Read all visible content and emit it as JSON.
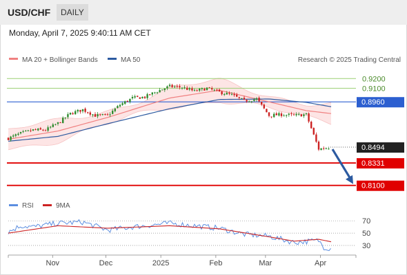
{
  "header": {
    "symbol": "USD/CHF",
    "period": "DAILY",
    "datetime": "Monday, April 7, 2025 9:40:11 AM CET"
  },
  "legend": {
    "ma20": "MA 20 + Bollinger Bands",
    "ma50": "MA 50",
    "credit": "Research © 2025 Trading Central"
  },
  "rsi_legend": {
    "rsi": "RSI",
    "ma": "9MA"
  },
  "colors": {
    "ma20": "#f08080",
    "ma50": "#2c5aa0",
    "bands": "#fde0e0",
    "up": "#2e8b2e",
    "down": "#cc2222",
    "resistance": "#9bcf73",
    "support": "#e00000",
    "blue_level": "#2c5fd0",
    "arrow": "#2c5aa0",
    "rsi": "#5b8ee0",
    "rsi_ma": "#cc2222"
  },
  "chart_data": [
    {
      "type": "line",
      "title": "USD/CHF",
      "ylim": [
        0.802,
        0.928
      ],
      "x_ticks": [
        "Nov",
        "Dec",
        "2025",
        "Feb",
        "Mar",
        "Apr"
      ],
      "price_levels": [
        {
          "label": "0.9200",
          "value": 0.92,
          "kind": "resistance"
        },
        {
          "label": "0.9100",
          "value": 0.91,
          "kind": "resistance"
        },
        {
          "label": "0.8960",
          "value": 0.896,
          "kind": "pivot"
        },
        {
          "label": "0.8494",
          "value": 0.8494,
          "kind": "current"
        },
        {
          "label": "0.8331",
          "value": 0.8331,
          "kind": "support"
        },
        {
          "label": "0.8100",
          "value": 0.81,
          "kind": "support"
        }
      ],
      "price_path": [
        {
          "date": "2024-10-07",
          "close": 0.8585
        },
        {
          "date": "2024-10-14",
          "close": 0.8635
        },
        {
          "date": "2024-10-21",
          "close": 0.867
        },
        {
          "date": "2024-10-28",
          "close": 0.867
        },
        {
          "date": "2024-11-04",
          "close": 0.874
        },
        {
          "date": "2024-11-11",
          "close": 0.884
        },
        {
          "date": "2024-11-18",
          "close": 0.888
        },
        {
          "date": "2024-11-25",
          "close": 0.882
        },
        {
          "date": "2024-12-02",
          "close": 0.882
        },
        {
          "date": "2024-12-09",
          "close": 0.893
        },
        {
          "date": "2024-12-16",
          "close": 0.9
        },
        {
          "date": "2024-12-23",
          "close": 0.901
        },
        {
          "date": "2024-12-30",
          "close": 0.907
        },
        {
          "date": "2025-01-06",
          "close": 0.912
        },
        {
          "date": "2025-01-13",
          "close": 0.911
        },
        {
          "date": "2025-01-20",
          "close": 0.907
        },
        {
          "date": "2025-01-27",
          "close": 0.91
        },
        {
          "date": "2025-02-03",
          "close": 0.906
        },
        {
          "date": "2025-02-10",
          "close": 0.903
        },
        {
          "date": "2025-02-17",
          "close": 0.897
        },
        {
          "date": "2025-02-24",
          "close": 0.899
        },
        {
          "date": "2025-03-03",
          "close": 0.882
        },
        {
          "date": "2025-03-10",
          "close": 0.883
        },
        {
          "date": "2025-03-17",
          "close": 0.882
        },
        {
          "date": "2025-03-24",
          "close": 0.883
        },
        {
          "date": "2025-03-31",
          "close": 0.8475
        },
        {
          "date": "2025-04-07",
          "close": 0.8494
        }
      ],
      "ma20": [
        {
          "date": "2024-10-07",
          "value": 0.8575
        },
        {
          "date": "2024-11-04",
          "value": 0.866
        },
        {
          "date": "2024-12-02",
          "value": 0.88
        },
        {
          "date": "2025-01-06",
          "value": 0.9
        },
        {
          "date": "2025-02-03",
          "value": 0.908
        },
        {
          "date": "2025-03-03",
          "value": 0.896
        },
        {
          "date": "2025-03-24",
          "value": 0.887
        },
        {
          "date": "2025-04-07",
          "value": 0.884
        }
      ],
      "ma50": [
        {
          "date": "2024-10-07",
          "value": 0.8555
        },
        {
          "date": "2024-11-04",
          "value": 0.8605
        },
        {
          "date": "2024-12-02",
          "value": 0.8735
        },
        {
          "date": "2025-01-06",
          "value": 0.889
        },
        {
          "date": "2025-02-03",
          "value": 0.8985
        },
        {
          "date": "2025-03-03",
          "value": 0.899
        },
        {
          "date": "2025-03-24",
          "value": 0.8955
        },
        {
          "date": "2025-04-07",
          "value": 0.891
        }
      ],
      "forecast_arrow": {
        "from": 0.8494,
        "to": 0.81
      }
    },
    {
      "type": "line",
      "title": "RSI",
      "ylim": [
        20,
        78
      ],
      "y_ticks": [
        70,
        50,
        30
      ],
      "rsi": [
        {
          "date": "2024-10-07",
          "value": 52
        },
        {
          "date": "2024-10-14",
          "value": 62
        },
        {
          "date": "2024-10-21",
          "value": 60
        },
        {
          "date": "2024-11-04",
          "value": 66
        },
        {
          "date": "2024-11-18",
          "value": 68
        },
        {
          "date": "2024-12-02",
          "value": 55
        },
        {
          "date": "2024-12-16",
          "value": 60
        },
        {
          "date": "2025-01-06",
          "value": 66
        },
        {
          "date": "2025-01-20",
          "value": 62
        },
        {
          "date": "2025-02-03",
          "value": 58
        },
        {
          "date": "2025-02-17",
          "value": 48
        },
        {
          "date": "2025-03-03",
          "value": 45
        },
        {
          "date": "2025-03-17",
          "value": 35
        },
        {
          "date": "2025-03-31",
          "value": 38
        },
        {
          "date": "2025-04-03",
          "value": 27
        },
        {
          "date": "2025-04-07",
          "value": 25
        }
      ],
      "rsi_ma": [
        {
          "date": "2024-10-07",
          "value": 50
        },
        {
          "date": "2024-11-04",
          "value": 62
        },
        {
          "date": "2024-12-02",
          "value": 58
        },
        {
          "date": "2025-01-06",
          "value": 62
        },
        {
          "date": "2025-02-03",
          "value": 57
        },
        {
          "date": "2025-03-03",
          "value": 44
        },
        {
          "date": "2025-03-17",
          "value": 37
        },
        {
          "date": "2025-03-31",
          "value": 40
        },
        {
          "date": "2025-04-07",
          "value": 36
        }
      ]
    }
  ]
}
